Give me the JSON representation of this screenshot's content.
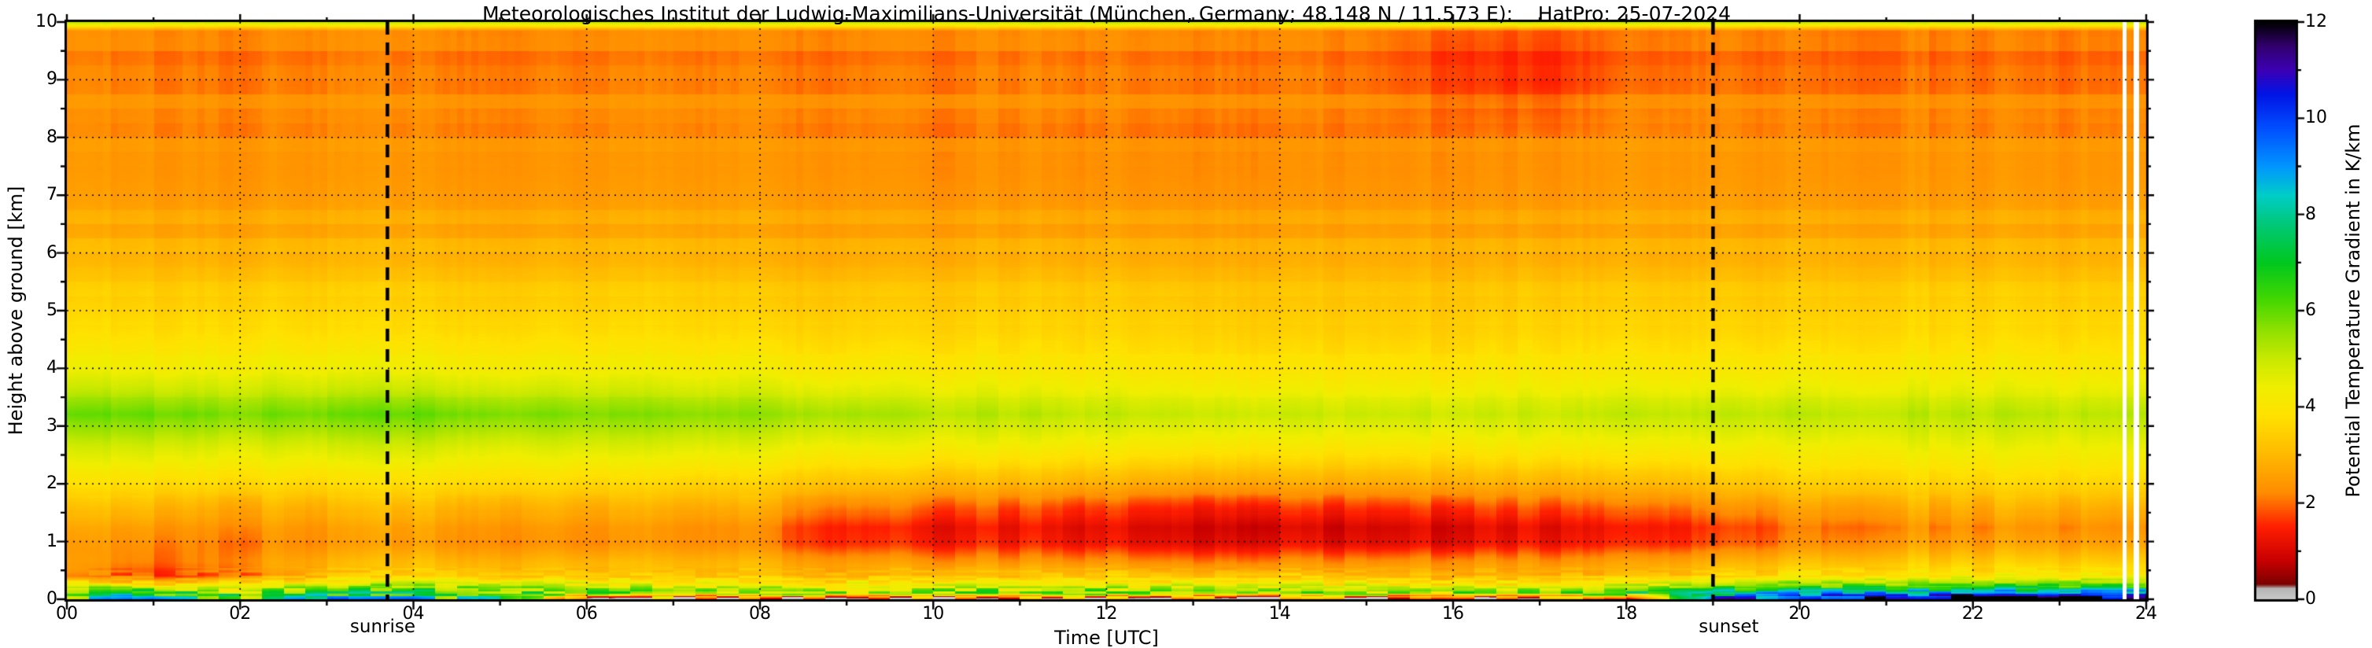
{
  "chart_data": {
    "type": "heatmap",
    "title": "Meteorologisches Institut der Ludwig-Maximilians-Universität (München, Germany; 48.148 N / 11.573 E):    HatPro: 25-07-2024",
    "xlabel": "Time [UTC]",
    "ylabel": "Height above ground [km]",
    "colorbar_label": "Potential Temperature Gradient in K/km",
    "xlim": [
      0,
      24
    ],
    "ylim": [
      0,
      10
    ],
    "vlim": [
      0,
      12
    ],
    "grid": true,
    "x_tick_values": [
      0,
      2,
      4,
      6,
      8,
      10,
      12,
      14,
      16,
      18,
      20,
      22,
      24
    ],
    "x_tick_labels": [
      "00",
      "02",
      "04",
      "06",
      "08",
      "10",
      "12",
      "14",
      "16",
      "18",
      "20",
      "22",
      "24"
    ],
    "y_tick_values": [
      0,
      1,
      2,
      3,
      4,
      5,
      6,
      7,
      8,
      9,
      10
    ],
    "y_tick_labels": [
      "0",
      "1",
      "2",
      "3",
      "4",
      "5",
      "6",
      "7",
      "8",
      "9",
      "10"
    ],
    "colorbar_tick_values": [
      0,
      2,
      4,
      6,
      8,
      10,
      12
    ],
    "colorbar_tick_labels": [
      "0",
      "2",
      "4",
      "6",
      "8",
      "10",
      "12"
    ],
    "annotations": [
      {
        "label": "sunrise",
        "time_utc": 3.7
      },
      {
        "label": "sunset",
        "time_utc": 19.0
      }
    ],
    "missing_time_intervals": [
      [
        23.73,
        23.78
      ],
      [
        23.86,
        23.92
      ]
    ],
    "colormap_stops": [
      [
        0.0,
        "#c8c8c8"
      ],
      [
        0.22,
        "#b4b4b4"
      ],
      [
        0.3,
        "#7a0000"
      ],
      [
        0.8,
        "#c80000"
      ],
      [
        1.5,
        "#ff1e00"
      ],
      [
        2.2,
        "#ff8c00"
      ],
      [
        3.0,
        "#ffb900"
      ],
      [
        3.8,
        "#ffe100"
      ],
      [
        4.4,
        "#f0ee00"
      ],
      [
        5.0,
        "#c8e900"
      ],
      [
        5.6,
        "#8fe000"
      ],
      [
        6.2,
        "#46d800"
      ],
      [
        7.0,
        "#00c81e"
      ],
      [
        7.8,
        "#00c878"
      ],
      [
        8.4,
        "#00cdc8"
      ],
      [
        9.0,
        "#0096ff"
      ],
      [
        9.8,
        "#004eff"
      ],
      [
        10.5,
        "#0014e6"
      ],
      [
        11.0,
        "#3c00b4"
      ],
      [
        11.5,
        "#32006e"
      ],
      [
        12.0,
        "#000000"
      ]
    ],
    "times_utc": [
      0,
      1,
      2,
      3,
      4,
      5,
      6,
      7,
      8,
      9,
      10,
      11,
      12,
      13,
      14,
      15,
      16,
      17,
      18,
      19,
      20,
      21,
      22,
      23,
      24
    ],
    "heights_km": [
      0.0,
      0.1,
      0.22,
      0.4,
      0.65,
      0.95,
      1.25,
      1.6,
      2.0,
      2.6,
      3.2,
      4.0,
      5.0,
      6.0,
      7.0,
      8.0,
      9.0,
      9.6,
      9.85,
      10.0
    ],
    "values_k_per_km": [
      [
        7.0,
        8.5,
        6.5,
        7.5,
        8.0,
        6.0,
        2.0,
        1.0,
        0.8,
        0.8,
        0.7,
        0.7,
        0.7,
        0.7,
        0.8,
        0.8,
        0.9,
        1.0,
        2.0,
        9.0,
        10.5,
        11.5,
        11.8,
        12.0,
        11.8
      ],
      [
        6.6,
        7.0,
        6.2,
        6.6,
        7.0,
        6.4,
        5.8,
        5.6,
        5.6,
        5.8,
        6.0,
        6.0,
        6.0,
        5.8,
        5.8,
        5.6,
        5.6,
        5.8,
        6.2,
        7.8,
        8.8,
        9.2,
        9.3,
        9.5,
        9.3
      ],
      [
        4.6,
        4.2,
        4.4,
        5.0,
        5.4,
        5.2,
        4.8,
        4.6,
        4.4,
        4.6,
        4.8,
        4.8,
        4.8,
        4.7,
        4.7,
        4.5,
        4.4,
        4.4,
        4.7,
        5.5,
        6.0,
        6.2,
        6.2,
        6.4,
        6.2
      ],
      [
        2.2,
        1.6,
        2.2,
        3.0,
        3.3,
        3.4,
        3.3,
        3.2,
        3.1,
        3.1,
        3.2,
        3.2,
        3.3,
        3.2,
        3.2,
        3.0,
        2.9,
        2.9,
        3.0,
        3.4,
        3.8,
        4.0,
        4.0,
        4.1,
        4.0
      ],
      [
        2.4,
        2.0,
        2.4,
        2.8,
        3.0,
        3.0,
        3.0,
        2.9,
        2.8,
        2.6,
        2.4,
        2.3,
        2.3,
        2.2,
        2.2,
        2.2,
        2.3,
        2.3,
        2.4,
        2.7,
        3.1,
        3.3,
        3.3,
        3.4,
        3.3
      ],
      [
        2.3,
        2.2,
        2.2,
        2.3,
        2.4,
        2.4,
        2.3,
        2.3,
        2.1,
        1.7,
        1.5,
        1.4,
        1.3,
        1.2,
        1.2,
        1.1,
        1.2,
        1.3,
        1.4,
        1.7,
        2.2,
        2.5,
        2.5,
        2.6,
        2.5
      ],
      [
        2.5,
        2.4,
        2.4,
        2.4,
        2.5,
        2.5,
        2.4,
        2.3,
        2.1,
        1.6,
        1.3,
        1.2,
        1.1,
        1.0,
        0.9,
        0.9,
        1.0,
        1.1,
        1.2,
        1.5,
        2.0,
        2.2,
        2.2,
        2.3,
        2.2
      ],
      [
        3.0,
        3.0,
        2.9,
        2.9,
        3.0,
        3.0,
        2.9,
        2.8,
        2.7,
        2.3,
        2.0,
        1.8,
        1.7,
        1.6,
        1.6,
        1.6,
        1.7,
        1.8,
        1.9,
        2.2,
        2.6,
        2.8,
        2.8,
        2.9,
        2.8
      ],
      [
        3.7,
        3.7,
        3.7,
        3.6,
        3.7,
        3.7,
        3.6,
        3.5,
        3.4,
        3.2,
        3.0,
        2.9,
        2.8,
        2.7,
        2.7,
        2.7,
        2.8,
        2.8,
        2.9,
        3.1,
        3.4,
        3.5,
        3.5,
        3.6,
        3.5
      ],
      [
        4.6,
        4.7,
        4.6,
        4.6,
        4.7,
        4.6,
        4.6,
        4.5,
        4.4,
        4.3,
        4.2,
        4.1,
        4.0,
        4.0,
        3.9,
        3.9,
        3.9,
        4.0,
        4.0,
        4.1,
        4.2,
        4.3,
        4.3,
        4.3,
        4.3
      ],
      [
        5.8,
        5.9,
        5.8,
        5.8,
        5.9,
        5.8,
        5.7,
        5.6,
        5.5,
        5.4,
        5.2,
        5.1,
        5.0,
        5.0,
        4.9,
        4.9,
        4.9,
        4.9,
        5.0,
        5.0,
        5.1,
        5.1,
        5.1,
        5.1,
        5.1
      ],
      [
        4.3,
        4.3,
        4.4,
        4.3,
        4.3,
        4.3,
        4.3,
        4.2,
        4.2,
        4.1,
        4.1,
        4.0,
        4.0,
        4.0,
        3.9,
        3.9,
        3.9,
        4.0,
        4.0,
        4.0,
        4.1,
        4.1,
        4.1,
        4.1,
        4.1
      ],
      [
        3.5,
        3.5,
        3.6,
        3.5,
        3.5,
        3.5,
        3.5,
        3.5,
        3.4,
        3.4,
        3.4,
        3.4,
        3.4,
        3.4,
        3.3,
        3.3,
        3.3,
        3.4,
        3.4,
        3.4,
        3.4,
        3.5,
        3.5,
        3.5,
        3.5
      ],
      [
        2.9,
        2.9,
        2.9,
        2.9,
        2.9,
        2.9,
        2.9,
        2.9,
        2.8,
        2.8,
        2.8,
        2.8,
        2.8,
        2.8,
        2.8,
        2.8,
        2.8,
        2.8,
        2.8,
        2.8,
        2.9,
        2.9,
        2.9,
        2.9,
        2.9
      ],
      [
        2.5,
        2.5,
        2.5,
        2.5,
        2.5,
        2.5,
        2.5,
        2.5,
        2.5,
        2.5,
        2.4,
        2.4,
        2.4,
        2.4,
        2.4,
        2.4,
        2.4,
        2.4,
        2.5,
        2.5,
        2.5,
        2.5,
        2.5,
        2.5,
        2.5
      ],
      [
        2.3,
        2.3,
        2.3,
        2.3,
        2.3,
        2.3,
        2.3,
        2.3,
        2.3,
        2.3,
        2.2,
        2.2,
        2.2,
        2.2,
        2.2,
        2.2,
        2.2,
        2.2,
        2.3,
        2.3,
        2.3,
        2.3,
        2.3,
        2.3,
        2.3
      ],
      [
        2.2,
        2.2,
        2.2,
        2.2,
        2.2,
        2.2,
        2.2,
        2.2,
        2.2,
        2.2,
        2.2,
        2.2,
        2.2,
        2.2,
        2.2,
        2.1,
        1.8,
        1.6,
        2.0,
        2.1,
        2.1,
        2.1,
        2.1,
        2.1,
        2.1
      ],
      [
        2.1,
        2.1,
        2.1,
        2.1,
        2.1,
        2.1,
        2.1,
        2.1,
        2.1,
        2.1,
        2.1,
        2.1,
        2.1,
        2.1,
        2.1,
        2.0,
        1.7,
        1.6,
        1.9,
        2.0,
        2.0,
        2.0,
        2.0,
        2.0,
        2.0
      ],
      [
        2.1,
        2.1,
        2.1,
        2.1,
        2.1,
        2.1,
        2.1,
        2.1,
        2.1,
        2.1,
        2.1,
        2.1,
        2.1,
        2.1,
        2.1,
        2.0,
        1.8,
        1.7,
        1.9,
        2.0,
        2.0,
        2.0,
        2.0,
        2.0,
        2.0
      ],
      [
        5.0,
        5.0,
        5.0,
        5.0,
        5.0,
        5.0,
        5.0,
        5.0,
        5.0,
        5.0,
        5.0,
        5.0,
        5.0,
        5.0,
        5.0,
        5.0,
        5.0,
        5.0,
        5.0,
        5.0,
        5.0,
        5.0,
        5.0,
        5.0,
        5.0
      ]
    ]
  }
}
